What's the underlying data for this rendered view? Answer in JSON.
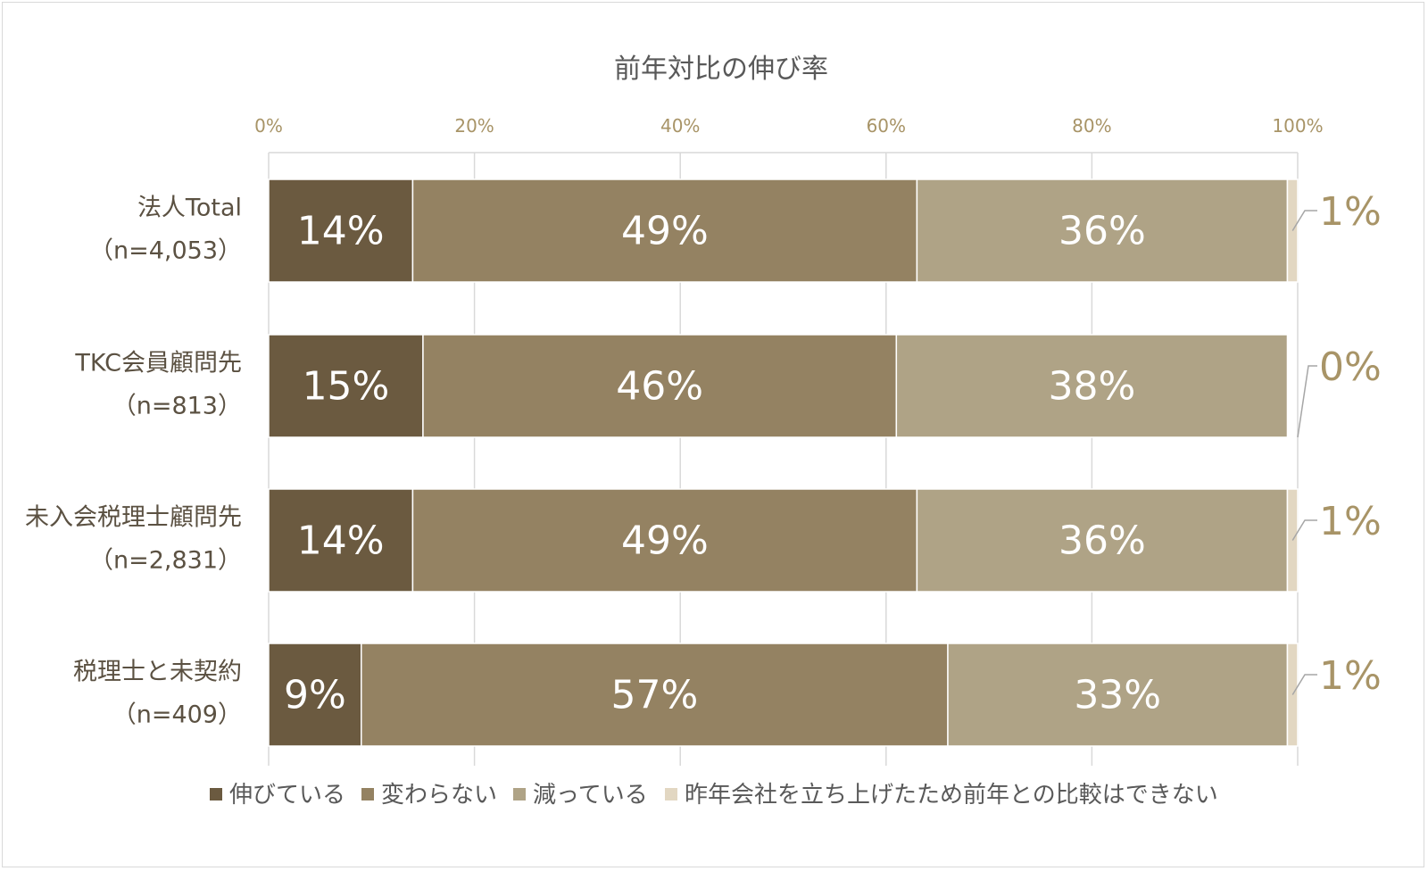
{
  "chart_data": {
    "type": "bar",
    "orientation": "horizontal",
    "stacked": "percent",
    "title": "前年対比の伸び率",
    "categories": [
      [
        "法人Total",
        "（n=4,053）"
      ],
      [
        "TKC会員顧問先",
        "（n=813）"
      ],
      [
        "未入会税理士顧問先",
        "（n=2,831）"
      ],
      [
        "税理士と未契約",
        "（n=409）"
      ]
    ],
    "series": [
      {
        "name": "伸びている",
        "color": "#6b5a40",
        "values": [
          14,
          15,
          14,
          9
        ],
        "labels": [
          "14%",
          "15%",
          "14%",
          "9%"
        ]
      },
      {
        "name": "変わらない",
        "color": "#948262",
        "values": [
          49,
          46,
          49,
          57
        ],
        "labels": [
          "49%",
          "46%",
          "49%",
          "57%"
        ]
      },
      {
        "name": "減っている",
        "color": "#afa386",
        "values": [
          36,
          38,
          36,
          33
        ],
        "labels": [
          "36%",
          "38%",
          "36%",
          "33%"
        ]
      },
      {
        "name": "昨年会社を立ち上げたため前年との比較はできない",
        "color": "#e2d7c2",
        "values": [
          1,
          0,
          1,
          1
        ],
        "labels": [
          "1%",
          "0%",
          "1%",
          "1%"
        ]
      }
    ],
    "x_axis": {
      "ticks": [
        "0%",
        "20%",
        "40%",
        "60%",
        "80%",
        "100%"
      ],
      "range": [
        0,
        100
      ],
      "position": "top",
      "tick_color": "#a89467"
    },
    "grid": true,
    "legend": {
      "position": "bottom"
    },
    "colors": {
      "category_label": "#5b5142",
      "title": "#595959",
      "inside_label": "#ffffff",
      "outside_label": "#a89467",
      "gridline": "#d9d9d9",
      "leader_line": "#a6a6a6",
      "legend_text": "#595959"
    }
  }
}
